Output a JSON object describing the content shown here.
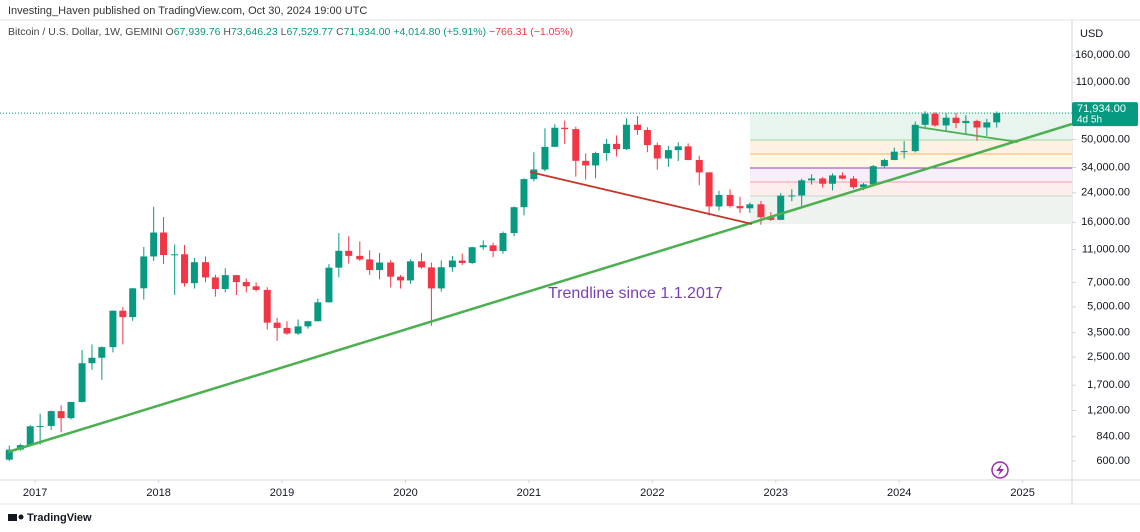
{
  "header": {
    "publisher": "Investing_Haven published on TradingView.com, Oct 30, 2024 19:00 UTC",
    "symbol": "Bitcoin / U.S. Dollar, 1W, GEMINI",
    "ohlc": [
      {
        "key": "O",
        "value": "67,939.76"
      },
      {
        "key": "H",
        "value": "73,646.23"
      },
      {
        "key": "L",
        "value": "67,529.77"
      },
      {
        "key": "C",
        "value": "71,934.00"
      }
    ],
    "change": "+4,014.80 (+5.91%)",
    "change_alt": "−766.31 (−1.05%)"
  },
  "footer": "TradingView",
  "chart_data": {
    "type": "candlestick",
    "currency": "USD",
    "log_scale": true,
    "grid": false,
    "up_color": "#089981",
    "down_color": "#f23645",
    "annotation": "Trendline since 1.1.2017",
    "last_price": {
      "value": 71934,
      "label": "71,934.00"
    },
    "countdown": "4d 5h",
    "xlim": [
      2016.715,
      2025.4
    ],
    "xticks": [
      2017,
      2018,
      2019,
      2020,
      2021,
      2022,
      2023,
      2024,
      2025
    ],
    "ylim": [
      461,
      252000
    ],
    "yticks": [
      {
        "value": 160000,
        "label": "160,000.00"
      },
      {
        "value": 110000,
        "label": "110,000.00"
      },
      {
        "value": 50000,
        "label": "50,000.00"
      },
      {
        "value": 34000,
        "label": "34,000.00"
      },
      {
        "value": 24000,
        "label": "24,000.00"
      },
      {
        "value": 16000,
        "label": "16,000.00"
      },
      {
        "value": 11000,
        "label": "11,000.00"
      },
      {
        "value": 7000,
        "label": "7,000.00"
      },
      {
        "value": 5000,
        "label": "5,000.00"
      },
      {
        "value": 3500,
        "label": "3,500.00"
      },
      {
        "value": 2500,
        "label": "2,500.00"
      },
      {
        "value": 1700,
        "label": "1,700.00"
      },
      {
        "value": 1200,
        "label": "1,200.00"
      },
      {
        "value": 840,
        "label": "840.00"
      },
      {
        "value": 600,
        "label": "600.00"
      }
    ],
    "x": [
      2016.79,
      2016.88,
      2016.96,
      2017.04,
      2017.13,
      2017.21,
      2017.29,
      2017.38,
      2017.46,
      2017.54,
      2017.63,
      2017.71,
      2017.79,
      2017.88,
      2017.96,
      2018.04,
      2018.13,
      2018.21,
      2018.29,
      2018.38,
      2018.46,
      2018.54,
      2018.63,
      2018.71,
      2018.79,
      2018.88,
      2018.96,
      2019.04,
      2019.13,
      2019.21,
      2019.29,
      2019.38,
      2019.46,
      2019.54,
      2019.63,
      2019.71,
      2019.79,
      2019.88,
      2019.96,
      2020.04,
      2020.13,
      2020.21,
      2020.29,
      2020.38,
      2020.46,
      2020.54,
      2020.63,
      2020.71,
      2020.79,
      2020.88,
      2020.96,
      2021.04,
      2021.13,
      2021.21,
      2021.29,
      2021.38,
      2021.46,
      2021.54,
      2021.63,
      2021.71,
      2021.79,
      2021.88,
      2021.96,
      2022.04,
      2022.13,
      2022.21,
      2022.29,
      2022.38,
      2022.46,
      2022.54,
      2022.63,
      2022.71,
      2022.79,
      2022.88,
      2022.96,
      2023.04,
      2023.13,
      2023.21,
      2023.29,
      2023.38,
      2023.46,
      2023.54,
      2023.63,
      2023.71,
      2023.79,
      2023.88,
      2023.96,
      2024.04,
      2024.13,
      2024.21,
      2024.29,
      2024.38,
      2024.46,
      2024.54,
      2024.63,
      2024.71,
      2024.79
    ],
    "open": [
      610,
      700,
      745,
      965,
      970,
      1190,
      1080,
      1350,
      2300,
      2480,
      2870,
      4740,
      4340,
      6450,
      10000,
      13900,
      10200,
      10300,
      6920,
      9240,
      7490,
      6390,
      7730,
      7030,
      6630,
      6310,
      4020,
      3740,
      3460,
      3820,
      4100,
      5320,
      8570,
      10800,
      10080,
      9600,
      8290,
      9200,
      7570,
      7190,
      9350,
      8600,
      6440,
      8620,
      9450,
      9140,
      11350,
      11650,
      10780,
      13800,
      19700,
      29000,
      33100,
      45200,
      58800,
      57700,
      37300,
      35000,
      41500,
      47100,
      43800,
      61300,
      57000,
      46300,
      38500,
      43200,
      45500,
      37700,
      31800,
      19900,
      23300,
      20000,
      19400,
      20500,
      17150,
      16550,
      23100,
      23150,
      28500,
      29250,
      27200,
      30500,
      29200,
      25950,
      26970,
      34650,
      37700,
      42300,
      42600,
      61200,
      71300,
      60700,
      67500,
      62700,
      64600,
      59000,
      63300
    ],
    "high": [
      740,
      760,
      980,
      1150,
      1200,
      1290,
      1350,
      2760,
      2980,
      2900,
      4750,
      4980,
      6470,
      11400,
      19800,
      17200,
      11800,
      11700,
      9800,
      10000,
      7770,
      8500,
      7760,
      7400,
      7000,
      6550,
      4300,
      4100,
      4200,
      4120,
      5600,
      9000,
      13800,
      13200,
      12300,
      10900,
      10500,
      9500,
      7750,
      9600,
      10500,
      9200,
      9470,
      10070,
      10400,
      11450,
      12470,
      12070,
      14100,
      19900,
      29300,
      41950,
      58300,
      61700,
      64900,
      59600,
      41300,
      42300,
      50500,
      52900,
      67000,
      69000,
      59100,
      47900,
      45800,
      48200,
      47400,
      40000,
      31900,
      24700,
      25200,
      22800,
      20990,
      21450,
      18400,
      23900,
      25250,
      29200,
      31000,
      29800,
      31400,
      31800,
      30200,
      27500,
      35200,
      38400,
      44700,
      48900,
      64000,
      73800,
      72800,
      71900,
      71950,
      70000,
      65600,
      66500,
      73646
    ],
    "low": [
      600,
      690,
      740,
      750,
      920,
      890,
      1060,
      1340,
      2100,
      1830,
      2670,
      2980,
      4120,
      5520,
      9400,
      9000,
      5900,
      6600,
      6430,
      7020,
      5750,
      6100,
      5880,
      6100,
      6180,
      3650,
      3130,
      3400,
      3400,
      3700,
      4080,
      5300,
      7500,
      9070,
      9400,
      7750,
      7300,
      6530,
      6430,
      6860,
      8450,
      3850,
      6160,
      8100,
      8900,
      8980,
      10950,
      9900,
      10400,
      13200,
      17600,
      28100,
      32300,
      45000,
      47000,
      30000,
      28800,
      29300,
      37300,
      39600,
      43300,
      53300,
      42000,
      33000,
      34300,
      37200,
      37600,
      26700,
      17600,
      18800,
      19600,
      18150,
      18200,
      15480,
      16300,
      16500,
      21400,
      19550,
      26900,
      25800,
      24800,
      28900,
      25300,
      24900,
      26600,
      34100,
      37600,
      38500,
      41900,
      59300,
      59600,
      56600,
      58400,
      53500,
      49100,
      52600,
      58900
    ],
    "close": [
      700,
      745,
      965,
      970,
      1190,
      1080,
      1350,
      2300,
      2480,
      2870,
      4740,
      4340,
      6450,
      10000,
      13900,
      10200,
      10300,
      6920,
      9240,
      7490,
      6390,
      7730,
      7030,
      6630,
      6310,
      4020,
      3740,
      3460,
      3820,
      4100,
      5320,
      8570,
      10800,
      10080,
      9600,
      8290,
      9200,
      7570,
      7190,
      9350,
      8600,
      6440,
      8620,
      9450,
      9140,
      11350,
      11650,
      10780,
      13800,
      19700,
      29000,
      33100,
      45200,
      58800,
      57700,
      37300,
      35000,
      41500,
      47100,
      43800,
      61300,
      57000,
      46300,
      38500,
      43200,
      45500,
      37700,
      31800,
      19900,
      23300,
      20000,
      19400,
      20500,
      17150,
      16550,
      23100,
      23150,
      28500,
      29250,
      27200,
      30500,
      29200,
      25950,
      26970,
      34650,
      37700,
      42300,
      42600,
      61200,
      71300,
      60700,
      67500,
      62700,
      64600,
      59000,
      63300,
      71934
    ]
  }
}
